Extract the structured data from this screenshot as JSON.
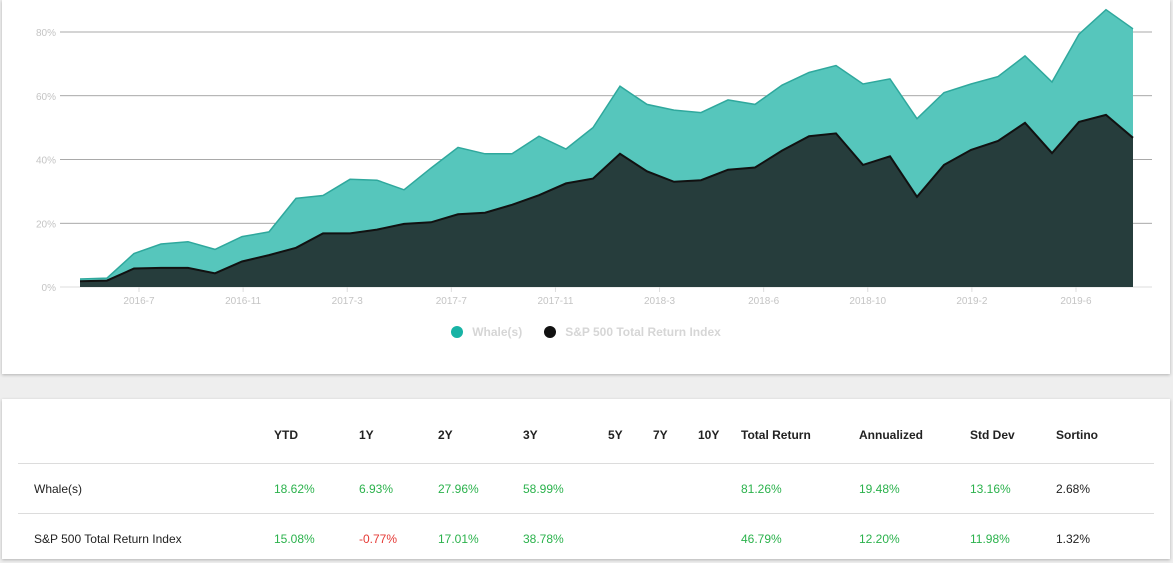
{
  "colors": {
    "fund": "#56c6bc",
    "fund_line": "#2fa89d",
    "index": "#263d3c",
    "index_line": "#111111",
    "positive": "#2bb24c",
    "negative": "#e53935"
  },
  "chart_data": {
    "type": "area",
    "x_tick_labels": [
      "2016-7",
      "2016-11",
      "2017-3",
      "2017-7",
      "2017-11",
      "2018-3",
      "2018-6",
      "2018-10",
      "2019-2",
      "2019-6"
    ],
    "y_tick_labels": [
      "0%",
      "20%",
      "40%",
      "60%",
      "80%"
    ],
    "ylim": [
      0,
      80
    ],
    "grid": true,
    "legend_position": "bottom",
    "series": [
      {
        "name": "Whale(s)",
        "color": "#56c6bc",
        "values": [
          2.5,
          2.8,
          10.5,
          13.5,
          14.2,
          11.8,
          15.8,
          17.3,
          27.8,
          28.7,
          33.8,
          33.5,
          30.5,
          37.3,
          43.8,
          41.8,
          41.8,
          47.3,
          43.3,
          50.0,
          63.0,
          57.3,
          55.5,
          54.7,
          58.7,
          57.3,
          63.3,
          67.3,
          69.5,
          63.7,
          65.3,
          52.8,
          61.0,
          63.7,
          66.0,
          72.5,
          64.3,
          79.3,
          87.0,
          81.0
        ]
      },
      {
        "name": "S&P 500 Total Return Index",
        "color": "#263d3c",
        "values": [
          1.8,
          2.0,
          5.8,
          6.0,
          6.0,
          4.3,
          8.0,
          10.0,
          12.3,
          16.8,
          16.8,
          18.0,
          19.8,
          20.3,
          22.8,
          23.3,
          25.8,
          28.8,
          32.5,
          34.0,
          41.8,
          36.3,
          33.0,
          33.5,
          36.8,
          37.5,
          42.8,
          47.3,
          48.2,
          38.3,
          41.0,
          28.3,
          38.3,
          43.0,
          45.8,
          51.5,
          42.0,
          51.8,
          54.0,
          46.8
        ]
      }
    ]
  },
  "table": {
    "columns": [
      "",
      "YTD",
      "1Y",
      "2Y",
      "3Y",
      "5Y",
      "7Y",
      "10Y",
      "Total Return",
      "Annualized",
      "Std Dev",
      "Sortino"
    ],
    "rows": [
      {
        "name": "Whale(s)",
        "ytd": "18.62%",
        "y1": "6.93%",
        "y2": "27.96%",
        "y3": "58.99%",
        "y5": "",
        "y7": "",
        "y10": "",
        "total": "81.26%",
        "annualized": "19.48%",
        "stddev": "13.16%",
        "sortino": "2.68%"
      },
      {
        "name": "S&P 500 Total Return Index",
        "ytd": "15.08%",
        "y1": "-0.77%",
        "y2": "17.01%",
        "y3": "38.78%",
        "y5": "",
        "y7": "",
        "y10": "",
        "total": "46.79%",
        "annualized": "12.20%",
        "stddev": "11.98%",
        "sortino": "1.32%"
      }
    ]
  }
}
